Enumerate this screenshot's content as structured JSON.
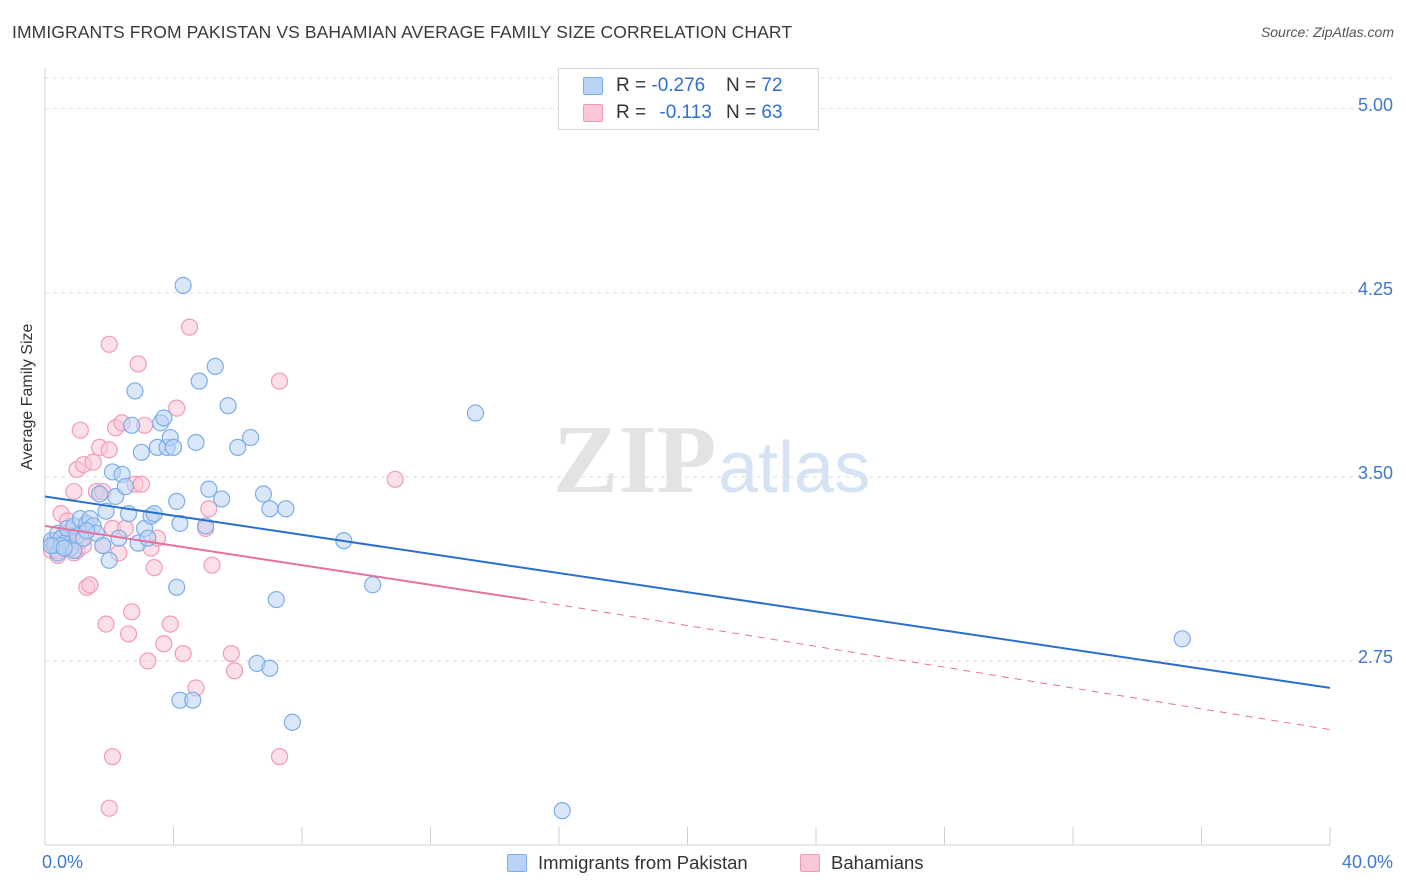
{
  "header": {
    "title": "IMMIGRANTS FROM PAKISTAN VS BAHAMIAN AVERAGE FAMILY SIZE CORRELATION CHART",
    "source": "Source: ZipAtlas.com"
  },
  "watermark": {
    "zip": "ZIP",
    "atlas": "atlas"
  },
  "legend_top": [
    {
      "r_label": "R = ",
      "r_value": "-0.276",
      "n_label": "N = ",
      "n_value": "72",
      "color": "#7baee8"
    },
    {
      "r_label": "R = ",
      "r_value": "-0.113",
      "n_label": "N = ",
      "n_value": "63",
      "color": "#f39ab7"
    }
  ],
  "colors": {
    "blue_fill": "#b9d3f4",
    "blue_stroke": "#7baee8",
    "blue_line": "#2a6fd0",
    "pink_fill": "#f9c6d6",
    "pink_stroke": "#f39ab7",
    "pink_line": "#e8709a",
    "tick_text": "#3f78cf",
    "grid": "#dedede"
  },
  "chart_data": {
    "type": "scatter",
    "title": "IMMIGRANTS FROM PAKISTAN VS BAHAMIAN AVERAGE FAMILY SIZE CORRELATION CHART",
    "xlabel": "",
    "ylabel": "Average Family Size",
    "xlim": [
      0,
      40
    ],
    "ylim": [
      2.0,
      5.125
    ],
    "x_tick_labels": [
      "0.0%",
      "40.0%"
    ],
    "y_ticks": [
      2.75,
      3.5,
      4.25,
      5.0
    ],
    "y_tick_labels": [
      "2.75",
      "3.50",
      "4.25",
      "5.00"
    ],
    "grid": true,
    "legend_position": "bottom",
    "series": [
      {
        "name": "Immigrants from Pakistan",
        "color": "#7baee8",
        "points": [
          [
            0.2,
            3.24
          ],
          [
            0.3,
            3.22
          ],
          [
            0.4,
            3.27
          ],
          [
            0.5,
            3.25
          ],
          [
            0.6,
            3.23
          ],
          [
            0.7,
            3.29
          ],
          [
            0.8,
            3.21
          ],
          [
            0.9,
            3.3
          ],
          [
            1.0,
            3.26
          ],
          [
            1.1,
            3.33
          ],
          [
            1.2,
            3.25
          ],
          [
            1.3,
            3.31
          ],
          [
            1.4,
            3.33
          ],
          [
            1.5,
            3.3
          ],
          [
            1.6,
            3.27
          ],
          [
            1.7,
            3.43
          ],
          [
            1.8,
            3.22
          ],
          [
            1.9,
            3.36
          ],
          [
            2.0,
            3.16
          ],
          [
            2.1,
            3.52
          ],
          [
            2.2,
            3.42
          ],
          [
            2.3,
            3.25
          ],
          [
            2.4,
            3.51
          ],
          [
            2.5,
            3.46
          ],
          [
            2.6,
            3.35
          ],
          [
            2.7,
            3.71
          ],
          [
            2.8,
            3.85
          ],
          [
            2.9,
            3.23
          ],
          [
            3.0,
            3.6
          ],
          [
            3.1,
            3.29
          ],
          [
            3.2,
            3.25
          ],
          [
            3.3,
            3.34
          ],
          [
            3.4,
            3.35
          ],
          [
            3.5,
            3.62
          ],
          [
            3.6,
            3.72
          ],
          [
            3.7,
            3.74
          ],
          [
            3.8,
            3.62
          ],
          [
            3.9,
            3.66
          ],
          [
            4.0,
            3.62
          ],
          [
            4.1,
            3.4
          ],
          [
            4.2,
            3.31
          ],
          [
            4.3,
            4.28
          ],
          [
            4.1,
            3.05
          ],
          [
            4.2,
            2.59
          ],
          [
            4.6,
            2.59
          ],
          [
            4.7,
            3.64
          ],
          [
            4.8,
            3.89
          ],
          [
            5.0,
            3.3
          ],
          [
            5.1,
            3.45
          ],
          [
            5.3,
            3.95
          ],
          [
            5.5,
            3.41
          ],
          [
            5.7,
            3.79
          ],
          [
            6.0,
            3.62
          ],
          [
            6.4,
            3.66
          ],
          [
            6.6,
            2.74
          ],
          [
            6.8,
            3.43
          ],
          [
            7.0,
            3.37
          ],
          [
            7.0,
            2.72
          ],
          [
            7.2,
            3.0
          ],
          [
            7.5,
            3.37
          ],
          [
            7.7,
            2.5
          ],
          [
            9.3,
            3.24
          ],
          [
            10.2,
            3.06
          ],
          [
            13.4,
            3.76
          ],
          [
            16.1,
            2.14
          ],
          [
            35.4,
            2.84
          ],
          [
            0.4,
            3.19
          ],
          [
            0.5,
            3.22
          ],
          [
            0.9,
            3.2
          ],
          [
            1.3,
            3.28
          ],
          [
            0.2,
            3.22
          ],
          [
            0.6,
            3.21
          ]
        ]
      },
      {
        "name": "Bahamians",
        "color": "#f39ab7",
        "points": [
          [
            0.2,
            3.2
          ],
          [
            0.3,
            3.23
          ],
          [
            0.4,
            3.18
          ],
          [
            0.5,
            3.25
          ],
          [
            0.6,
            3.21
          ],
          [
            0.7,
            3.22
          ],
          [
            0.8,
            3.26
          ],
          [
            0.9,
            3.19
          ],
          [
            1.0,
            3.2
          ],
          [
            1.1,
            3.24
          ],
          [
            1.2,
            3.22
          ],
          [
            1.3,
            3.3
          ],
          [
            0.5,
            3.35
          ],
          [
            0.6,
            3.27
          ],
          [
            0.7,
            3.32
          ],
          [
            0.8,
            3.28
          ],
          [
            0.9,
            3.44
          ],
          [
            1.0,
            3.53
          ],
          [
            1.1,
            3.69
          ],
          [
            1.2,
            3.55
          ],
          [
            1.3,
            3.05
          ],
          [
            1.4,
            3.06
          ],
          [
            1.5,
            3.56
          ],
          [
            1.6,
            3.44
          ],
          [
            1.7,
            3.62
          ],
          [
            1.8,
            3.44
          ],
          [
            1.9,
            2.9
          ],
          [
            2.0,
            3.61
          ],
          [
            2.1,
            3.29
          ],
          [
            2.2,
            3.7
          ],
          [
            2.3,
            3.19
          ],
          [
            2.4,
            3.72
          ],
          [
            2.5,
            3.29
          ],
          [
            2.6,
            2.86
          ],
          [
            2.7,
            2.95
          ],
          [
            2.8,
            3.47
          ],
          [
            2.9,
            3.96
          ],
          [
            3.0,
            3.47
          ],
          [
            3.1,
            3.71
          ],
          [
            3.2,
            2.75
          ],
          [
            3.3,
            3.21
          ],
          [
            3.4,
            3.13
          ],
          [
            1.8,
            3.22
          ],
          [
            2.0,
            4.04
          ],
          [
            2.1,
            2.36
          ],
          [
            2.0,
            2.15
          ],
          [
            3.5,
            3.25
          ],
          [
            3.7,
            2.82
          ],
          [
            3.9,
            2.9
          ],
          [
            4.1,
            3.78
          ],
          [
            4.3,
            2.78
          ],
          [
            4.5,
            4.11
          ],
          [
            4.7,
            2.64
          ],
          [
            5.0,
            3.29
          ],
          [
            5.1,
            3.37
          ],
          [
            5.2,
            3.14
          ],
          [
            5.8,
            2.78
          ],
          [
            5.9,
            2.71
          ],
          [
            7.3,
            3.89
          ],
          [
            7.3,
            2.36
          ],
          [
            10.9,
            3.49
          ],
          [
            0.4,
            3.2
          ],
          [
            0.3,
            3.24
          ]
        ]
      }
    ],
    "trend_lines": [
      {
        "series": "Immigrants from Pakistan",
        "style": "solid",
        "x": [
          0,
          40
        ],
        "y": [
          3.42,
          2.64
        ]
      },
      {
        "series": "Bahamians",
        "style": "solid",
        "x": [
          0,
          15
        ],
        "y": [
          3.3,
          3.0
        ]
      },
      {
        "series": "Bahamians",
        "style": "dashed",
        "x": [
          15,
          40
        ],
        "y": [
          3.0,
          2.47
        ]
      }
    ]
  },
  "legend_bottom": [
    {
      "label": "Immigrants from Pakistan",
      "color": "#7baee8"
    },
    {
      "label": "Bahamians",
      "color": "#f39ab7"
    }
  ]
}
